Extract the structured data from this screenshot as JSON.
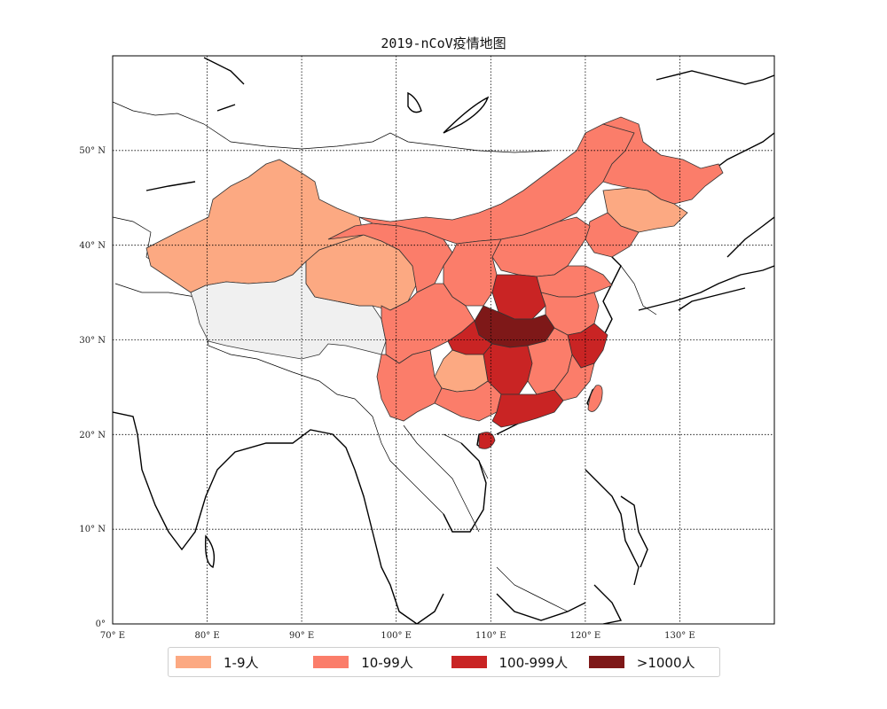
{
  "title": "2019-nCoV疫情地图",
  "lon_ticks": [
    "70° E",
    "80° E",
    "90° E",
    "100° E",
    "110° E",
    "120° E",
    "130° E"
  ],
  "lat_ticks": [
    "0°",
    "10° N",
    "20° N",
    "30° N",
    "40° N",
    "50° N"
  ],
  "extent": {
    "lon": [
      70,
      140
    ],
    "lat": [
      0,
      60
    ]
  },
  "colors": {
    "bin1": "#fca982",
    "bin2": "#fb7d6a",
    "bin3": "#c92424",
    "bin4": "#7e1818",
    "no_data": "#f0f0f0",
    "coast": "#000000",
    "grid": "#000000"
  },
  "legend": [
    {
      "label": "1-9人",
      "color": "#fca982"
    },
    {
      "label": "10-99人",
      "color": "#fb7d6a"
    },
    {
      "label": "100-999人",
      "color": "#c92424"
    },
    {
      "label": ">1000人",
      "color": "#7e1818"
    }
  ]
}
